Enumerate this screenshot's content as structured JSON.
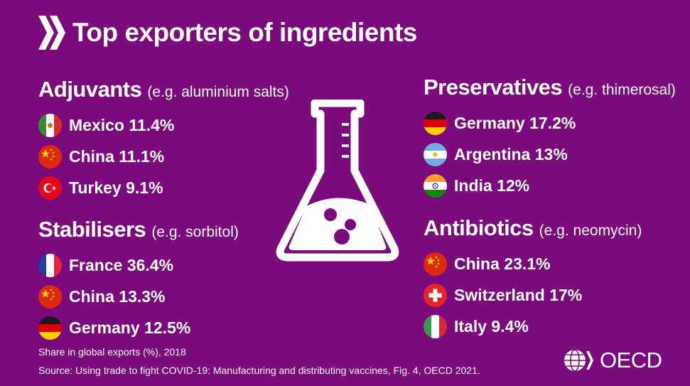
{
  "title": "Top exporters of ingredients",
  "sections": {
    "adjuvants": {
      "title": "Adjuvants",
      "subtitle": "(e.g. aluminium salts)",
      "items": [
        {
          "country": "Mexico",
          "share": "11.4%",
          "label": "Mexico 11.4%"
        },
        {
          "country": "China",
          "share": "11.1%",
          "label": "China 11.1%"
        },
        {
          "country": "Turkey",
          "share": "9.1%",
          "label": "Turkey 9.1%"
        }
      ]
    },
    "stabilisers": {
      "title": "Stabilisers",
      "subtitle": "(e.g. sorbitol)",
      "items": [
        {
          "country": "France",
          "share": "36.4%",
          "label": "France 36.4%"
        },
        {
          "country": "China",
          "share": "13.3%",
          "label": "China 13.3%"
        },
        {
          "country": "Germany",
          "share": "12.5%",
          "label": "Germany 12.5%"
        }
      ]
    },
    "preservatives": {
      "title": "Preservatives",
      "subtitle": "(e.g. thimerosal)",
      "items": [
        {
          "country": "Germany",
          "share": "17.2%",
          "label": "Germany 17.2%"
        },
        {
          "country": "Argentina",
          "share": "13%",
          "label": "Argentina 13%"
        },
        {
          "country": "India",
          "share": "12%",
          "label": "India 12%"
        }
      ]
    },
    "antibiotics": {
      "title": "Antibiotics",
      "subtitle": "(e.g. neomycin)",
      "items": [
        {
          "country": "China",
          "share": "23.1%",
          "label": "China 23.1%"
        },
        {
          "country": "Switzerland",
          "share": "17%",
          "label": "Switzerland 17%"
        },
        {
          "country": "Italy",
          "share": "9.4%",
          "label": "Italy 9.4%"
        }
      ]
    }
  },
  "footer": {
    "note": "Share in global exports (%), 2018",
    "source": "Source: Using trade to fight COVID-19: Manufacturing and distributing vaccines, Fig. 4, OECD 2021."
  },
  "logo": {
    "text": "OECD"
  },
  "colors": {
    "background": "#7b0a7c",
    "text": "#ffffff"
  }
}
